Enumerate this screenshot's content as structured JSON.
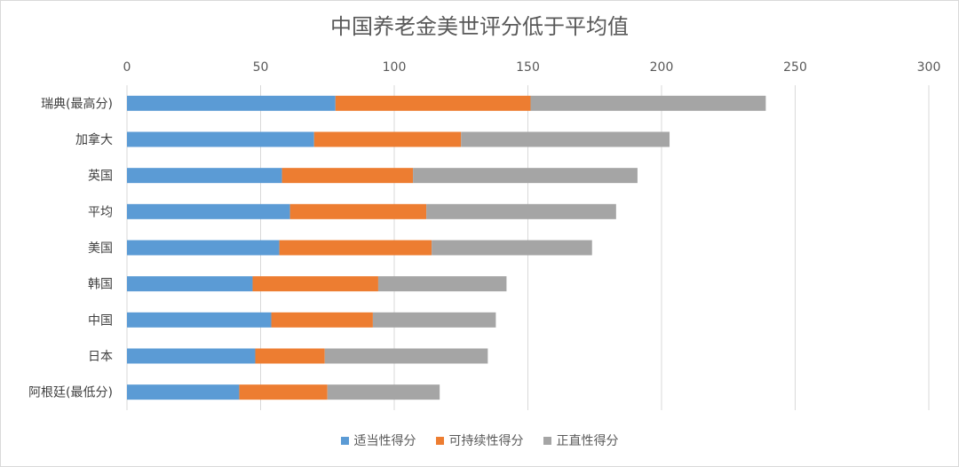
{
  "chart_data": {
    "type": "bar",
    "orientation": "horizontal",
    "stacked": true,
    "title": "中国养老金美世评分低于平均值",
    "categories": [
      "瑞典(最高分)",
      "加拿大",
      "英国",
      "平均",
      "美国",
      "韩国",
      "中国",
      "日本",
      "阿根廷(最低分)"
    ],
    "series": [
      {
        "name": "适当性得分",
        "color": "#5b9bd5",
        "values": [
          78,
          70,
          58,
          61,
          57,
          47,
          54,
          48,
          42
        ]
      },
      {
        "name": "可持续性得分",
        "color": "#ed7d31",
        "values": [
          73,
          55,
          49,
          51,
          57,
          47,
          38,
          26,
          33
        ]
      },
      {
        "name": "正直性得分",
        "color": "#a5a5a5",
        "values": [
          88,
          78,
          84,
          71,
          60,
          48,
          46,
          61,
          42
        ]
      }
    ],
    "xlim": [
      0,
      300
    ],
    "xticks": [
      0,
      50,
      100,
      150,
      200,
      250,
      300
    ],
    "x_axis_position": "top",
    "grid": true,
    "legend_position": "bottom"
  }
}
